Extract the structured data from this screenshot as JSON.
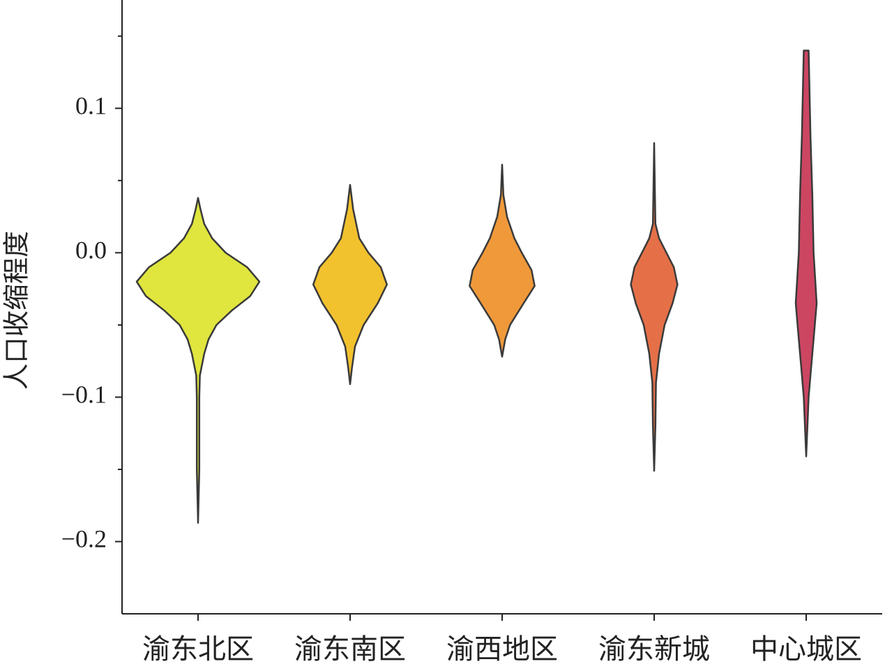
{
  "chart_data": {
    "type": "violin",
    "y_label": "人口收缩程度",
    "categories": [
      "渝东北区",
      "渝东南区",
      "渝西地区",
      "渝东新城",
      "中心城区"
    ],
    "colors": [
      "#e0e63e",
      "#f2c12e",
      "#f0993a",
      "#e57048",
      "#cc4662"
    ],
    "violins": [
      {
        "values": [
          0.038,
          0.03,
          0.02,
          0.01,
          0.0,
          -0.01,
          -0.02,
          -0.03,
          -0.04,
          -0.05,
          -0.06,
          -0.07,
          -0.085,
          -0.1,
          -0.15,
          -0.187
        ],
        "half_widths": [
          0,
          0.04,
          0.1,
          0.23,
          0.45,
          0.8,
          1.0,
          0.85,
          0.55,
          0.3,
          0.17,
          0.1,
          0.03,
          0.02,
          0.02,
          0
        ]
      },
      {
        "values": [
          0.047,
          0.03,
          0.01,
          0.0,
          -0.01,
          -0.022,
          -0.035,
          -0.05,
          -0.065,
          -0.08,
          -0.091
        ],
        "half_widths": [
          0,
          0.05,
          0.15,
          0.3,
          0.5,
          0.6,
          0.45,
          0.22,
          0.08,
          0.03,
          0
        ]
      },
      {
        "values": [
          0.061,
          0.04,
          0.025,
          0.01,
          0.0,
          -0.012,
          -0.023,
          -0.035,
          -0.05,
          -0.06,
          -0.072
        ],
        "half_widths": [
          0,
          0.02,
          0.08,
          0.2,
          0.32,
          0.48,
          0.53,
          0.35,
          0.13,
          0.05,
          0
        ]
      },
      {
        "values": [
          0.076,
          0.02,
          0.01,
          0.0,
          -0.01,
          -0.022,
          -0.035,
          -0.05,
          -0.07,
          -0.09,
          -0.12,
          -0.151
        ],
        "half_widths": [
          0,
          0.02,
          0.08,
          0.2,
          0.32,
          0.38,
          0.3,
          0.17,
          0.08,
          0.03,
          0.02,
          0
        ]
      },
      {
        "values": [
          0.14,
          0.12,
          0.08,
          0.04,
          0.0,
          -0.035,
          -0.06,
          -0.08,
          -0.1,
          -0.12,
          -0.141
        ],
        "half_widths": [
          0.04,
          0.05,
          0.07,
          0.1,
          0.12,
          0.17,
          0.12,
          0.08,
          0.04,
          0.02,
          0
        ]
      }
    ],
    "ylim": [
      -0.25,
      0.175
    ],
    "yticks": [
      {
        "value": -0.2,
        "label": "−0.2"
      },
      {
        "value": -0.1,
        "label": "−0.1"
      },
      {
        "value": 0.0,
        "label": "0.0"
      },
      {
        "value": 0.1,
        "label": "0.1"
      }
    ],
    "minor_yticks": [
      -0.15,
      -0.05,
      0.05,
      0.15
    ]
  }
}
